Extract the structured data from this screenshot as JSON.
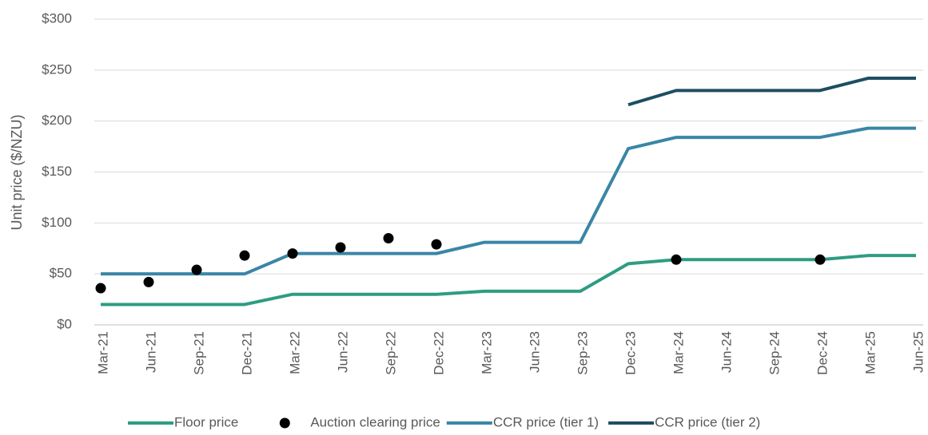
{
  "chart_data": {
    "type": "line",
    "y_label": "Unit price ($/NZU)",
    "categories": [
      "Mar-21",
      "Jun-21",
      "Sep-21",
      "Dec-21",
      "Mar-22",
      "Jun-22",
      "Sep-22",
      "Dec-22",
      "Mar-23",
      "Jun-23",
      "Sep-23",
      "Dec-23",
      "Mar-24",
      "Jun-24",
      "Sep-24",
      "Dec-24",
      "Mar-25",
      "Jun-25"
    ],
    "series": [
      {
        "name": "Floor price",
        "color": "#2e9c82",
        "style": "line",
        "values": [
          20,
          20,
          20,
          20,
          30,
          30,
          30,
          30,
          33,
          33,
          33,
          60,
          64,
          64,
          64,
          64,
          68,
          68
        ]
      },
      {
        "name": "Auction clearing price",
        "color": "#000000",
        "style": "markers",
        "values": [
          36,
          42,
          54,
          68,
          70,
          76,
          85,
          79,
          null,
          null,
          null,
          null,
          64,
          null,
          null,
          64,
          null,
          null
        ]
      },
      {
        "name": "CCR price (tier 1)",
        "color": "#3a86a6",
        "style": "line",
        "values": [
          50,
          50,
          50,
          50,
          70,
          70,
          70,
          70,
          81,
          81,
          81,
          173,
          184,
          184,
          184,
          184,
          193,
          193
        ]
      },
      {
        "name": "CCR price (tier 2)",
        "color": "#1d4e63",
        "style": "line",
        "values": [
          null,
          null,
          null,
          null,
          null,
          null,
          null,
          null,
          null,
          null,
          null,
          216,
          230,
          230,
          230,
          230,
          242,
          242
        ]
      }
    ],
    "ylim": [
      0,
      300
    ],
    "yticks": [
      {
        "value": 0,
        "label": "$0"
      },
      {
        "value": 50,
        "label": "$50"
      },
      {
        "value": 100,
        "label": "$100"
      },
      {
        "value": 150,
        "label": "$150"
      },
      {
        "value": 200,
        "label": "$200"
      },
      {
        "value": 250,
        "label": "$250"
      },
      {
        "value": 300,
        "label": "$300"
      }
    ],
    "grid": true,
    "legend": "bottom"
  }
}
